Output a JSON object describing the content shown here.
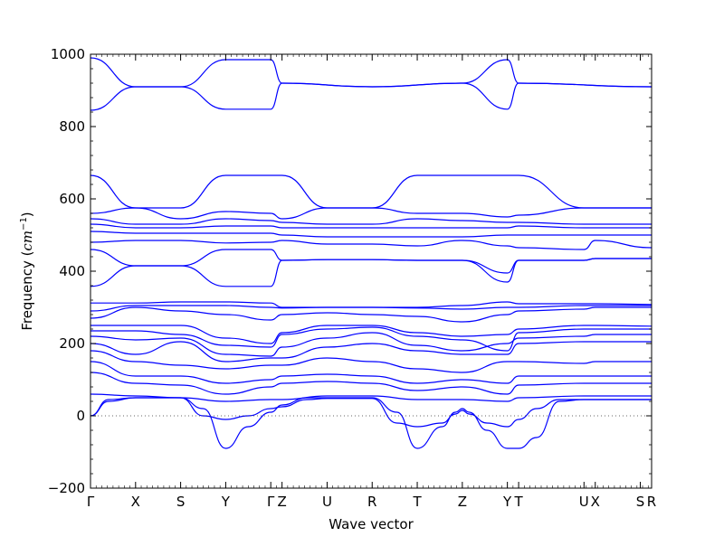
{
  "chart_data": {
    "type": "line",
    "xlabel": "Wave vector",
    "ylabel": "Frequency ",
    "ylabel_unit_base": "cm",
    "ylabel_unit_exp": "−1",
    "ylim": [
      -200,
      1000
    ],
    "yticks": [
      -200,
      0,
      200,
      400,
      600,
      800,
      1000
    ],
    "ytick_labels": [
      "−200",
      "0",
      "200",
      "400",
      "600",
      "800",
      "1000"
    ],
    "xlim": [
      0,
      12.45
    ],
    "xticks": [
      {
        "pos": 0.0,
        "label": "Γ"
      },
      {
        "pos": 1.0,
        "label": "X"
      },
      {
        "pos": 2.0,
        "label": "S"
      },
      {
        "pos": 3.0,
        "label": "Y"
      },
      {
        "pos": 4.0,
        "label": "Γ"
      },
      {
        "pos": 4.25,
        "label": "Z"
      },
      {
        "pos": 5.25,
        "label": "U"
      },
      {
        "pos": 6.25,
        "label": "R"
      },
      {
        "pos": 7.25,
        "label": "T"
      },
      {
        "pos": 8.25,
        "label": "Z"
      },
      {
        "pos": 9.25,
        "label": "Y"
      },
      {
        "pos": 9.5,
        "label": "T"
      },
      {
        "pos": 10.95,
        "label": "U"
      },
      {
        "pos": 11.2,
        "label": "X"
      },
      {
        "pos": 12.2,
        "label": "S"
      },
      {
        "pos": 12.45,
        "label": "R"
      }
    ],
    "zero_line": true,
    "color": "#0000ff",
    "series": [
      {
        "x": [
          0,
          1,
          2,
          3,
          4,
          4.25,
          6.25,
          8.25,
          9.25,
          9.5,
          12.45
        ],
        "values": [
          990,
          910,
          910,
          985,
          985,
          920,
          910,
          920,
          985,
          920,
          910
        ]
      },
      {
        "x": [
          0,
          1,
          2,
          3,
          4,
          4.25,
          6.25,
          8.25,
          9.25,
          9.5,
          12.45
        ],
        "values": [
          845,
          910,
          910,
          848,
          848,
          920,
          910,
          920,
          848,
          920,
          910
        ]
      },
      {
        "x": [
          0,
          1,
          2,
          3,
          4,
          4.25,
          5.25,
          6.25,
          7.25,
          8.25,
          9.25,
          9.5,
          10.95,
          11.2,
          12.45
        ],
        "values": [
          665,
          575,
          575,
          665,
          665,
          665,
          575,
          575,
          665,
          665,
          665,
          665,
          575,
          575,
          575
        ]
      },
      {
        "x": [
          0,
          1,
          2,
          3,
          4,
          4.25,
          5.25,
          6.25,
          7.25,
          8.25,
          9.25,
          9.5,
          10.95,
          11.2,
          12.45
        ],
        "values": [
          560,
          575,
          545,
          565,
          560,
          545,
          575,
          575,
          560,
          560,
          550,
          555,
          575,
          575,
          575
        ]
      },
      {
        "x": [
          0,
          1,
          2,
          3,
          4,
          4.25,
          5.25,
          6.25,
          7.25,
          8.25,
          9.25,
          9.5,
          10.95,
          11.2,
          12.45
        ],
        "values": [
          545,
          530,
          530,
          545,
          540,
          535,
          530,
          530,
          545,
          540,
          535,
          535,
          530,
          530,
          530
        ]
      },
      {
        "x": [
          0,
          1,
          2,
          3,
          4,
          4.25,
          5.25,
          6.25,
          7.25,
          8.25,
          9.25,
          9.5,
          10.95,
          11.2,
          12.45
        ],
        "values": [
          530,
          520,
          520,
          525,
          525,
          520,
          520,
          520,
          520,
          520,
          520,
          525,
          520,
          520,
          520
        ]
      },
      {
        "x": [
          0,
          1,
          2,
          3,
          4,
          4.25,
          5.25,
          6.25,
          7.25,
          8.25,
          9.25,
          9.5,
          10.95,
          11.2,
          12.45
        ],
        "values": [
          510,
          505,
          505,
          505,
          505,
          500,
          495,
          495,
          495,
          495,
          500,
          500,
          500,
          500,
          500
        ]
      },
      {
        "x": [
          0,
          1,
          2,
          3,
          4,
          4.25,
          5.25,
          6.25,
          7.25,
          8.25,
          9.25,
          9.5,
          10.95,
          11.2,
          12.45
        ],
        "values": [
          480,
          485,
          485,
          478,
          480,
          485,
          475,
          475,
          470,
          485,
          470,
          465,
          460,
          485,
          465
        ]
      },
      {
        "x": [
          0,
          1,
          2,
          3,
          4,
          4.25,
          5.25,
          6.25,
          7.25,
          8.25,
          9.25,
          9.5,
          10.95,
          11.2,
          12.45
        ],
        "values": [
          460,
          415,
          415,
          460,
          460,
          430,
          432,
          432,
          430,
          430,
          395,
          430,
          430,
          435,
          435
        ]
      },
      {
        "x": [
          0,
          1,
          2,
          3,
          4,
          4.25,
          5.25,
          6.25,
          7.25,
          8.25,
          9.25,
          9.5,
          10.95,
          11.2,
          12.45
        ],
        "values": [
          358,
          415,
          415,
          358,
          358,
          430,
          432,
          432,
          430,
          430,
          370,
          430,
          430,
          435,
          435
        ]
      },
      {
        "x": [
          0,
          1,
          2,
          3,
          4,
          4.25,
          5.25,
          6.25,
          7.25,
          8.25,
          9.25,
          9.5,
          10.95,
          11.2,
          12.45
        ],
        "values": [
          312,
          312,
          315,
          315,
          312,
          300,
          300,
          300,
          300,
          305,
          315,
          310,
          310,
          310,
          308
        ]
      },
      {
        "x": [
          0,
          1,
          2,
          3,
          4,
          4.25,
          5.25,
          6.25,
          7.25,
          8.25,
          9.25,
          9.5,
          10.95,
          11.2,
          12.45
        ],
        "values": [
          290,
          305,
          305,
          305,
          300,
          298,
          300,
          300,
          298,
          295,
          300,
          300,
          305,
          305,
          305
        ]
      },
      {
        "x": [
          0,
          1,
          2,
          3,
          4,
          4.25,
          5.25,
          6.25,
          7.25,
          8.25,
          9.25,
          9.5,
          10.95,
          11.2,
          12.45
        ],
        "values": [
          270,
          300,
          290,
          280,
          265,
          280,
          285,
          280,
          275,
          260,
          280,
          290,
          295,
          300,
          300
        ]
      },
      {
        "x": [
          0,
          1,
          2,
          3,
          4,
          4.25,
          5.25,
          6.25,
          7.25,
          8.25,
          9.25,
          9.5,
          10.95,
          11.2,
          12.45
        ],
        "values": [
          250,
          250,
          250,
          215,
          200,
          230,
          250,
          250,
          230,
          220,
          225,
          240,
          250,
          250,
          248
        ]
      },
      {
        "x": [
          0,
          1,
          2,
          3,
          4,
          4.25,
          5.25,
          6.25,
          7.25,
          8.25,
          9.25,
          9.5,
          10.95,
          11.2,
          12.45
        ],
        "values": [
          235,
          235,
          225,
          195,
          190,
          225,
          240,
          245,
          220,
          210,
          180,
          230,
          240,
          240,
          240
        ]
      },
      {
        "x": [
          0,
          1,
          2,
          3,
          4,
          4.25,
          5.25,
          6.25,
          7.25,
          8.25,
          9.25,
          9.5,
          10.95,
          11.2,
          12.45
        ],
        "values": [
          220,
          210,
          215,
          170,
          165,
          190,
          215,
          230,
          195,
          180,
          200,
          215,
          220,
          225,
          225
        ]
      },
      {
        "x": [
          0,
          1,
          2,
          3,
          4,
          4.25,
          5.25,
          6.25,
          7.25,
          8.25,
          9.25,
          9.5,
          10.95,
          11.2,
          12.45
        ],
        "values": [
          200,
          170,
          205,
          150,
          160,
          160,
          190,
          200,
          180,
          170,
          170,
          200,
          205,
          205,
          205
        ]
      },
      {
        "x": [
          0,
          1,
          2,
          3,
          4,
          4.25,
          5.25,
          6.25,
          7.25,
          8.25,
          9.25,
          9.5,
          10.95,
          11.2,
          12.45
        ],
        "values": [
          180,
          150,
          140,
          130,
          140,
          140,
          160,
          150,
          130,
          120,
          150,
          150,
          145,
          150,
          150
        ]
      },
      {
        "x": [
          0,
          1,
          2,
          3,
          4,
          4.25,
          5.25,
          6.25,
          7.25,
          8.25,
          9.25,
          9.5,
          10.95,
          11.2,
          12.45
        ],
        "values": [
          150,
          110,
          110,
          90,
          100,
          110,
          115,
          110,
          90,
          100,
          90,
          110,
          110,
          110,
          110
        ]
      },
      {
        "x": [
          0,
          1,
          2,
          3,
          4,
          4.25,
          5.25,
          6.25,
          7.25,
          8.25,
          9.25,
          9.5,
          10.95,
          11.2,
          12.45
        ],
        "values": [
          120,
          90,
          85,
          60,
          80,
          90,
          95,
          90,
          70,
          80,
          60,
          85,
          90,
          90,
          90
        ]
      },
      {
        "x": [
          0,
          1,
          2,
          3,
          4,
          4.25,
          5.25,
          6.25,
          7.25,
          8.25,
          9.25,
          9.5,
          10.95,
          11.2,
          12.45
        ],
        "values": [
          60,
          55,
          50,
          40,
          45,
          45,
          55,
          55,
          45,
          45,
          40,
          50,
          55,
          55,
          55
        ]
      },
      {
        "x": [
          0,
          0.4,
          1,
          2,
          2.5,
          3,
          3.5,
          4,
          4.25,
          4.8,
          5.25,
          6.25,
          6.8,
          7.25,
          7.8,
          8.1,
          8.25,
          8.4,
          8.8,
          9.25,
          9.5,
          9.9,
          10.4,
          10.95,
          11.2,
          12.45
        ],
        "values": [
          0,
          45,
          50,
          50,
          20,
          -90,
          -30,
          10,
          30,
          50,
          50,
          50,
          10,
          -90,
          -30,
          10,
          20,
          10,
          -40,
          -90,
          -90,
          -60,
          40,
          45,
          45,
          45
        ]
      },
      {
        "x": [
          0,
          0.4,
          1,
          2,
          2.5,
          3,
          3.5,
          4,
          4.25,
          4.8,
          5.25,
          6.25,
          6.8,
          7.25,
          7.8,
          8.1,
          8.25,
          8.4,
          8.8,
          9.25,
          9.5,
          9.9,
          10.4,
          10.95,
          11.2,
          12.45
        ],
        "values": [
          0,
          40,
          50,
          50,
          0,
          -10,
          0,
          20,
          25,
          45,
          48,
          48,
          -20,
          -30,
          -20,
          5,
          15,
          5,
          -20,
          -30,
          -10,
          20,
          45,
          45,
          45,
          45
        ]
      }
    ]
  }
}
